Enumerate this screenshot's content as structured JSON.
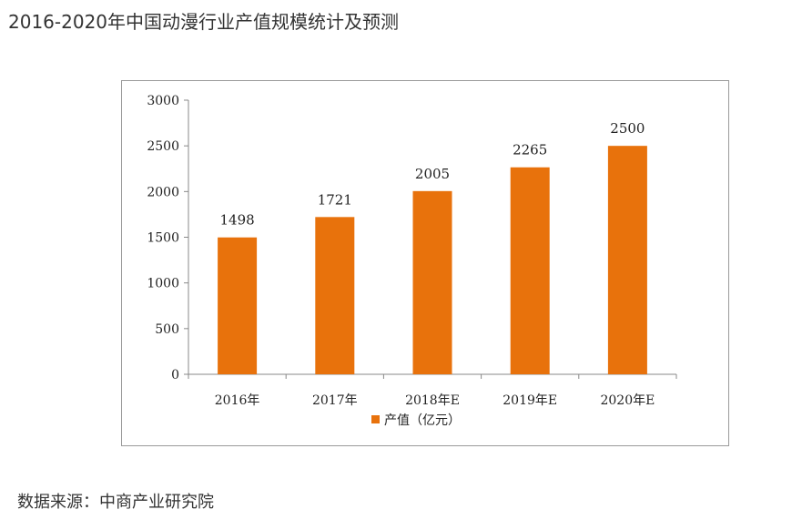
{
  "page": {
    "title": "2016-2020年中国动漫行业产值规模统计及预测",
    "source": "数据来源：中商产业研究院"
  },
  "colors": {
    "bar": "#E8720C",
    "axis": "#888888",
    "border": "#9a9a9a"
  },
  "chart_data": {
    "type": "bar",
    "categories": [
      "2016年",
      "2017年",
      "2018年E",
      "2019年E",
      "2020年E"
    ],
    "series": [
      {
        "name": "产值（亿元）",
        "values": [
          1498,
          1721,
          2005,
          2265,
          2500
        ]
      }
    ],
    "ylim": [
      0,
      3000
    ],
    "yticks": [
      0,
      500,
      1000,
      1500,
      2000,
      2500,
      3000
    ],
    "grid": false,
    "legend": "bottom-center"
  }
}
